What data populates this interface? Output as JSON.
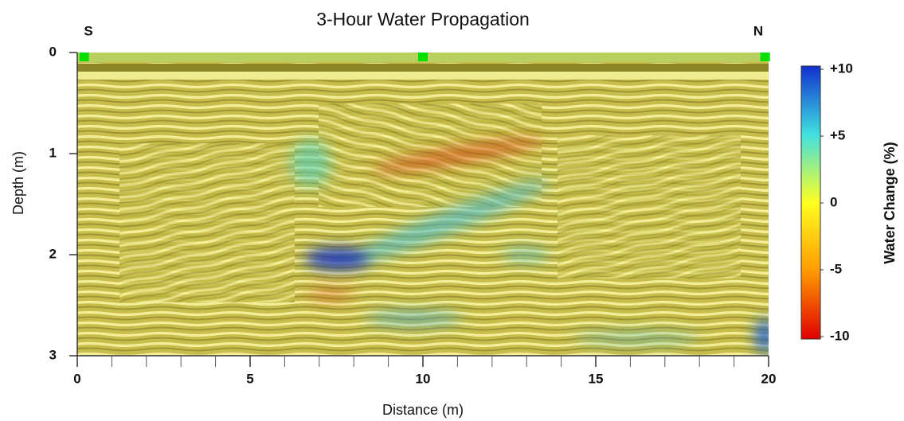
{
  "chart_data": {
    "type": "radargram",
    "title": "3-Hour Water Propagation",
    "xlabel": "Distance (m)",
    "ylabel": "Depth (m)",
    "annotations": {
      "left": "S",
      "right": "N"
    },
    "xlim": [
      0,
      20
    ],
    "xticks": [
      0,
      5,
      10,
      15,
      20
    ],
    "xminorticks": [
      1,
      2,
      3,
      4,
      6,
      7,
      8,
      9,
      11,
      12,
      13,
      14,
      16,
      17,
      18,
      19
    ],
    "ylim": [
      0,
      3
    ],
    "yticks": [
      0,
      1,
      2,
      3
    ],
    "y_inverted": true,
    "markers": {
      "x": [
        0.2,
        10,
        19.9
      ],
      "color": "#00e000"
    },
    "colorbar": {
      "label": "Water Change (%)",
      "clim": [
        -10,
        10
      ],
      "ticks": [
        {
          "value": 10,
          "label": "+10"
        },
        {
          "value": 5,
          "label": "+5"
        },
        0,
        -5,
        -10
      ],
      "colors": [
        "#e00000",
        "#ff9a00",
        "#ffff20",
        "#40e0e0",
        "#1030d0"
      ]
    }
  }
}
